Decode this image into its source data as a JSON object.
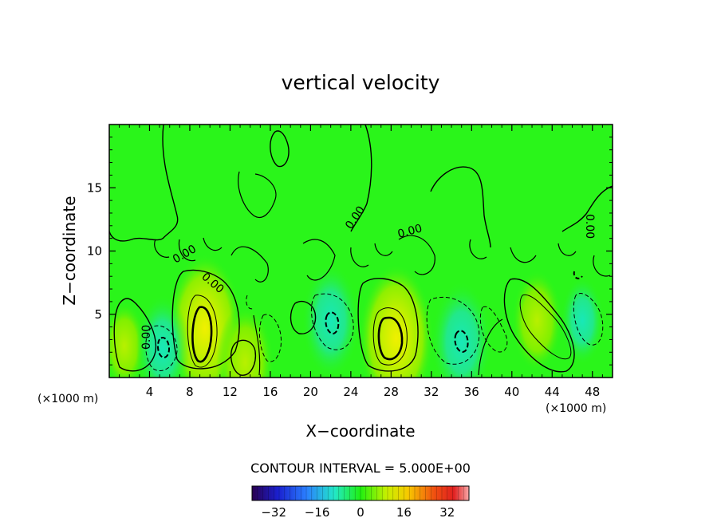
{
  "chart_data": {
    "type": "contour",
    "title": "vertical velocity",
    "xlabel": "X−coordinate",
    "ylabel": "Z−coordinate",
    "x_unit": "(×1000 m)",
    "x_ticks": [
      4,
      8,
      12,
      16,
      20,
      24,
      28,
      32,
      36,
      40,
      44,
      48
    ],
    "y_ticks": [
      5,
      10,
      15
    ],
    "xlim": [
      0,
      50
    ],
    "ylim": [
      0,
      20
    ],
    "contour_interval_label": "CONTOUR INTERVAL = 5.000E+00",
    "contour_labels": [
      "0.00",
      "0.00",
      "0.00",
      "0.00",
      "0.00",
      "0.00"
    ],
    "colorbar": {
      "ticks": [
        "−32",
        "−16",
        "0",
        "16",
        "32"
      ],
      "range": [
        -40,
        40
      ]
    },
    "features": [
      {
        "kind": "updraft",
        "x": 9.5,
        "z": 3.9,
        "value": 15
      },
      {
        "kind": "updraft",
        "x": 28.5,
        "z": 3.1,
        "value": 15
      },
      {
        "kind": "updraft",
        "x": 13.5,
        "z": 1.2,
        "value": 10
      },
      {
        "kind": "updraft",
        "x": 42.5,
        "z": 4.5,
        "value": 8
      },
      {
        "kind": "updraft",
        "x": 1.5,
        "z": 2.5,
        "value": 6
      },
      {
        "kind": "downdraft",
        "x": 5.3,
        "z": 2.3,
        "value": -9
      },
      {
        "kind": "downdraft",
        "x": 22.0,
        "z": 4.5,
        "value": -10
      },
      {
        "kind": "downdraft",
        "x": 35.0,
        "z": 2.8,
        "value": -11
      },
      {
        "kind": "downdraft",
        "x": 47.0,
        "z": 4.5,
        "value": -6
      }
    ]
  },
  "colors": {
    "background_field": "#2af51a",
    "contour_line": "#000000"
  }
}
